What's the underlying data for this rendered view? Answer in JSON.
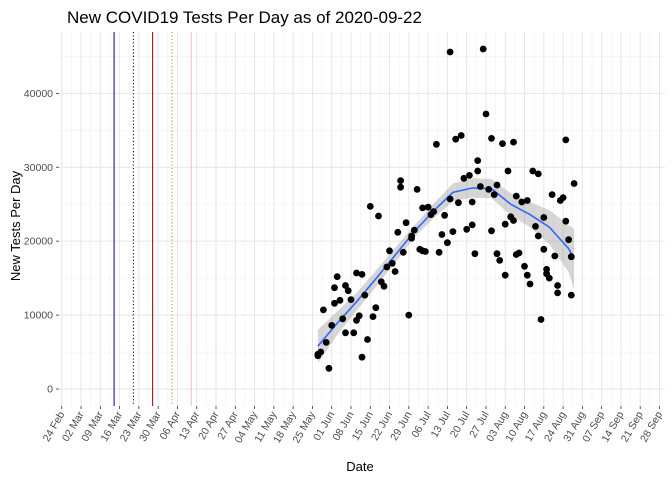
{
  "chart_data": {
    "type": "scatter",
    "title": "New COVID19 Tests Per Day as of 2020-09-22",
    "xlabel": "Date",
    "ylabel": "New Tests Per Day",
    "x_axis": {
      "range_days": [
        -1,
        219
      ],
      "ticks": [
        {
          "day": 0,
          "label": "24 Feb"
        },
        {
          "day": 7,
          "label": "02 Mar"
        },
        {
          "day": 14,
          "label": "09 Mar"
        },
        {
          "day": 21,
          "label": "16 Mar"
        },
        {
          "day": 28,
          "label": "23 Mar"
        },
        {
          "day": 35,
          "label": "30 Mar"
        },
        {
          "day": 42,
          "label": "06 Apr"
        },
        {
          "day": 49,
          "label": "13 Apr"
        },
        {
          "day": 56,
          "label": "20 Apr"
        },
        {
          "day": 63,
          "label": "27 Apr"
        },
        {
          "day": 70,
          "label": "04 May"
        },
        {
          "day": 77,
          "label": "11 May"
        },
        {
          "day": 84,
          "label": "18 May"
        },
        {
          "day": 91,
          "label": "25 May"
        },
        {
          "day": 98,
          "label": "01 Jun"
        },
        {
          "day": 105,
          "label": "08 Jun"
        },
        {
          "day": 112,
          "label": "15 Jun"
        },
        {
          "day": 119,
          "label": "22 Jun"
        },
        {
          "day": 126,
          "label": "29 Jun"
        },
        {
          "day": 133,
          "label": "06 Jul"
        },
        {
          "day": 140,
          "label": "13 Jul"
        },
        {
          "day": 147,
          "label": "20 Jul"
        },
        {
          "day": 154,
          "label": "27 Jul"
        },
        {
          "day": 161,
          "label": "03 Aug"
        },
        {
          "day": 168,
          "label": "10 Aug"
        },
        {
          "day": 175,
          "label": "17 Aug"
        },
        {
          "day": 182,
          "label": "24 Aug"
        },
        {
          "day": 189,
          "label": "31 Aug"
        },
        {
          "day": 196,
          "label": "07 Sep"
        },
        {
          "day": 203,
          "label": "14 Sep"
        },
        {
          "day": 210,
          "label": "21 Sep"
        },
        {
          "day": 217,
          "label": "28 Sep"
        }
      ]
    },
    "y_axis": {
      "range": [
        -2300,
        48300
      ],
      "ticks": [
        {
          "value": 0,
          "label": "0"
        },
        {
          "value": 10000,
          "label": "10000"
        },
        {
          "value": 20000,
          "label": "20000"
        },
        {
          "value": 30000,
          "label": "30000"
        },
        {
          "value": 40000,
          "label": "40000"
        }
      ]
    },
    "vlines": [
      {
        "day": 19,
        "color": "#00008b",
        "style": "solid"
      },
      {
        "day": 26,
        "color": "#000000",
        "style": "dotted"
      },
      {
        "day": 33,
        "color": "#8b0000",
        "style": "solid"
      },
      {
        "day": 40,
        "color": "#b8860b",
        "style": "dotted"
      },
      {
        "day": 47,
        "color": "#ffb6c1",
        "style": "solid"
      }
    ],
    "points": [
      [
        93,
        4500
      ],
      [
        93,
        4700
      ],
      [
        94,
        5000
      ],
      [
        95,
        10700
      ],
      [
        96,
        6300
      ],
      [
        97,
        2800
      ],
      [
        98,
        8600
      ],
      [
        99,
        13700
      ],
      [
        99,
        11600
      ],
      [
        100,
        15200
      ],
      [
        101,
        12000
      ],
      [
        102,
        9500
      ],
      [
        103,
        7600
      ],
      [
        103,
        14000
      ],
      [
        104,
        13300
      ],
      [
        105,
        12100
      ],
      [
        106,
        7600
      ],
      [
        107,
        9300
      ],
      [
        107,
        15700
      ],
      [
        108,
        9900
      ],
      [
        109,
        4300
      ],
      [
        109,
        15500
      ],
      [
        110,
        12700
      ],
      [
        111,
        6700
      ],
      [
        112,
        24700
      ],
      [
        113,
        9800
      ],
      [
        114,
        11000
      ],
      [
        115,
        23400
      ],
      [
        116,
        14500
      ],
      [
        117,
        13900
      ],
      [
        118,
        16500
      ],
      [
        119,
        18700
      ],
      [
        120,
        17000
      ],
      [
        121,
        15900
      ],
      [
        122,
        21200
      ],
      [
        123,
        28200
      ],
      [
        123,
        27300
      ],
      [
        124,
        18500
      ],
      [
        125,
        22500
      ],
      [
        126,
        10000
      ],
      [
        127,
        20400
      ],
      [
        127,
        20700
      ],
      [
        128,
        21500
      ],
      [
        129,
        27000
      ],
      [
        130,
        18900
      ],
      [
        131,
        18700
      ],
      [
        131,
        24500
      ],
      [
        132,
        18600
      ],
      [
        133,
        24600
      ],
      [
        134,
        23600
      ],
      [
        135,
        24000
      ],
      [
        136,
        33100
      ],
      [
        137,
        18500
      ],
      [
        138,
        20900
      ],
      [
        139,
        23500
      ],
      [
        140,
        19800
      ],
      [
        141,
        45600
      ],
      [
        141,
        25700
      ],
      [
        142,
        21300
      ],
      [
        143,
        33800
      ],
      [
        144,
        25200
      ],
      [
        145,
        34300
      ],
      [
        146,
        28500
      ],
      [
        147,
        21600
      ],
      [
        148,
        28900
      ],
      [
        149,
        22200
      ],
      [
        149,
        25300
      ],
      [
        150,
        18300
      ],
      [
        151,
        30900
      ],
      [
        151,
        29500
      ],
      [
        152,
        27400
      ],
      [
        153,
        46000
      ],
      [
        154,
        37200
      ],
      [
        155,
        27000
      ],
      [
        156,
        33900
      ],
      [
        156,
        21400
      ],
      [
        157,
        26300
      ],
      [
        158,
        27600
      ],
      [
        158,
        18300
      ],
      [
        159,
        17400
      ],
      [
        160,
        33200
      ],
      [
        161,
        22300
      ],
      [
        161,
        15400
      ],
      [
        162,
        29500
      ],
      [
        163,
        23300
      ],
      [
        164,
        22800
      ],
      [
        164,
        33400
      ],
      [
        165,
        26100
      ],
      [
        165,
        18200
      ],
      [
        166,
        18400
      ],
      [
        167,
        25300
      ],
      [
        168,
        16600
      ],
      [
        169,
        25500
      ],
      [
        169,
        15400
      ],
      [
        170,
        14200
      ],
      [
        171,
        29500
      ],
      [
        172,
        22000
      ],
      [
        173,
        29100
      ],
      [
        173,
        20700
      ],
      [
        174,
        9400
      ],
      [
        175,
        18900
      ],
      [
        175,
        23200
      ],
      [
        176,
        16200
      ],
      [
        176,
        15600
      ],
      [
        177,
        15000
      ],
      [
        178,
        26300
      ],
      [
        179,
        18000
      ],
      [
        180,
        13000
      ],
      [
        180,
        14000
      ],
      [
        181,
        25500
      ],
      [
        182,
        25900
      ],
      [
        183,
        22700
      ],
      [
        183,
        33700
      ],
      [
        184,
        20200
      ],
      [
        185,
        17900
      ],
      [
        185,
        12700
      ],
      [
        186,
        27800
      ]
    ],
    "smooth": {
      "series": [
        {
          "name": "loess",
          "color": "#3366ff",
          "x": [
            93,
            100,
            107,
            114,
            121,
            128,
            135,
            142,
            149,
            156,
            163,
            170,
            177,
            184,
            186
          ],
          "y": [
            5800,
            8900,
            11800,
            14900,
            18100,
            21300,
            24100,
            26600,
            27200,
            27100,
            25000,
            23600,
            21900,
            19000,
            17600
          ],
          "lo": [
            3500,
            7300,
            10600,
            13800,
            17100,
            20500,
            23100,
            25400,
            25900,
            25800,
            23500,
            21900,
            19600,
            15800,
            13500
          ],
          "hi": [
            8000,
            10500,
            13000,
            16000,
            19100,
            22100,
            25100,
            27800,
            28500,
            28400,
            26500,
            25300,
            24200,
            22200,
            21700
          ]
        }
      ]
    }
  }
}
